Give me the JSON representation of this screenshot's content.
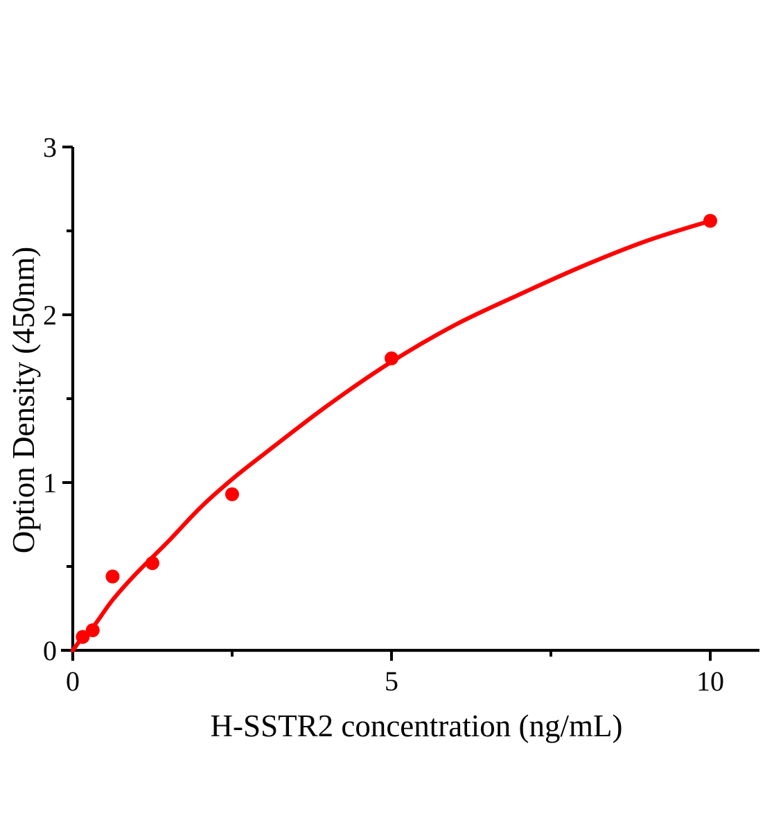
{
  "chart_data": {
    "type": "scatter",
    "title": "",
    "xlabel": "H-SSTR2 concentration (ng/mL)",
    "ylabel": "Option Density (450nm)",
    "points": [
      {
        "x": 0.156,
        "y": 0.08
      },
      {
        "x": 0.313,
        "y": 0.12
      },
      {
        "x": 0.625,
        "y": 0.44
      },
      {
        "x": 1.25,
        "y": 0.52
      },
      {
        "x": 2.5,
        "y": 0.93
      },
      {
        "x": 5,
        "y": 1.74
      },
      {
        "x": 10,
        "y": 2.56
      }
    ],
    "fit_curve": [
      [
        0,
        0
      ],
      [
        0.16,
        0.08
      ],
      [
        0.34,
        0.15
      ],
      [
        0.625,
        0.3
      ],
      [
        1,
        0.46
      ],
      [
        1.5,
        0.65
      ],
      [
        2,
        0.85
      ],
      [
        2.5,
        1.02
      ],
      [
        3,
        1.17
      ],
      [
        4,
        1.46
      ],
      [
        5,
        1.72
      ],
      [
        6,
        1.94
      ],
      [
        7,
        2.12
      ],
      [
        8,
        2.29
      ],
      [
        9,
        2.44
      ],
      [
        10,
        2.56
      ]
    ],
    "xlim": [
      0,
      10.75
    ],
    "ylim": [
      0,
      3
    ],
    "x_major_ticks": [
      0,
      5,
      10
    ],
    "x_minor_ticks": [
      2.5,
      7.5
    ],
    "y_major_ticks": [
      0,
      1,
      2,
      3
    ],
    "y_minor_ticks": [
      0.5,
      1.5,
      2.5
    ],
    "grid": false,
    "legend": null,
    "marker_color": "#ff0000",
    "line_color": "#ff0000",
    "axis_color": "#000000"
  }
}
